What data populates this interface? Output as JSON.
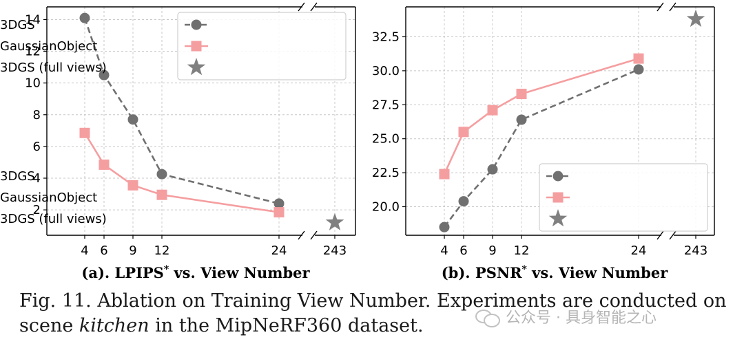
{
  "chart_data": [
    {
      "type": "line",
      "title": "(a). LPIPS* vs. View Number",
      "title_main": "(a). LPIPS",
      "title_sup": "*",
      "title_rest": " vs. View Number",
      "x_broken_axis": true,
      "categories": [
        "4",
        "6",
        "9",
        "12",
        "24",
        "243"
      ],
      "x": [
        4,
        6,
        9,
        12,
        24
      ],
      "ylim": [
        0.4,
        14.8
      ],
      "yticks": [
        "2",
        "4",
        "6",
        "8",
        "10",
        "12",
        "14"
      ],
      "grid": true,
      "legend_position": "top-right",
      "series": [
        {
          "name": "3DGS",
          "values": [
            14.1,
            10.5,
            7.7,
            4.25,
            2.4
          ],
          "color": "#707070",
          "marker": "circle",
          "dash": true
        },
        {
          "name": "GaussianObject",
          "values": [
            6.85,
            4.85,
            3.55,
            2.95,
            1.85
          ],
          "color": "#f59ea0",
          "marker": "square",
          "dash": false
        },
        {
          "name": "3DGS (full views)",
          "x": [
            243
          ],
          "values": [
            1.2
          ],
          "color": "#808080",
          "marker": "star"
        }
      ]
    },
    {
      "type": "line",
      "title": "(b). PSNR* vs. View Number",
      "title_main": "(b). PSNR",
      "title_sup": "*",
      "title_rest": " vs. View Number",
      "x_broken_axis": true,
      "categories": [
        "4",
        "6",
        "9",
        "12",
        "24",
        "243"
      ],
      "x": [
        4,
        6,
        9,
        12,
        24
      ],
      "ylim": [
        17.9,
        34.7
      ],
      "yticks": [
        "20.0",
        "22.5",
        "25.0",
        "27.5",
        "30.0",
        "32.5"
      ],
      "grid": true,
      "legend_position": "lower-right",
      "series": [
        {
          "name": "3DGS",
          "values": [
            18.5,
            20.4,
            22.75,
            26.4,
            30.1
          ],
          "color": "#707070",
          "marker": "circle",
          "dash": true
        },
        {
          "name": "GaussianObject",
          "values": [
            22.4,
            25.5,
            27.1,
            28.3,
            30.9
          ],
          "color": "#f59ea0",
          "marker": "square",
          "dash": false
        },
        {
          "name": "3DGS (full views)",
          "x": [
            243
          ],
          "values": [
            33.8
          ],
          "color": "#808080",
          "marker": "star"
        }
      ]
    }
  ],
  "caption": {
    "prefix": "Fig. 11.  Ablation on Training View Number. Experiments are conducted on scene ",
    "emph": "kitchen",
    "suffix": " in the MipNeRF360 dataset."
  },
  "watermark": "公众号 · 具身智能之心"
}
